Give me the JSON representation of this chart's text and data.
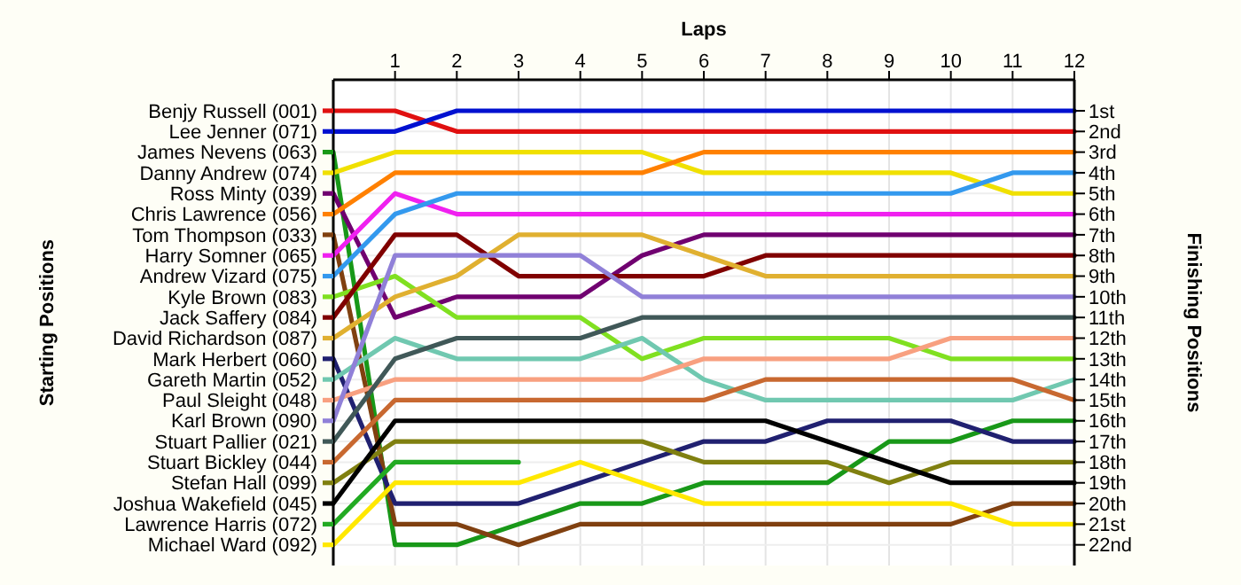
{
  "chart_data": {
    "type": "line",
    "xlabel": "Laps",
    "annotations": [
      "Starting Positions"
    ],
    "legend": "left",
    "ylabel": "Finishing Positions",
    "grid": true,
    "x": [
      0,
      1,
      2,
      3,
      4,
      5,
      6,
      7,
      8,
      9,
      10,
      11,
      12
    ],
    "xlim": [
      0,
      12
    ],
    "xticks": [
      1,
      2,
      3,
      4,
      5,
      6,
      7,
      8,
      9,
      10,
      11,
      12
    ],
    "ylim": [
      23,
      -0.5
    ],
    "yticks": [
      {
        "value": 1,
        "label": "1st"
      },
      {
        "value": 2,
        "label": "2nd"
      },
      {
        "value": 3,
        "label": "3rd"
      },
      {
        "value": 4,
        "label": "4th"
      },
      {
        "value": 5,
        "label": "5th"
      },
      {
        "value": 6,
        "label": "6th"
      },
      {
        "value": 7,
        "label": "7th"
      },
      {
        "value": 8,
        "label": "8th"
      },
      {
        "value": 9,
        "label": "9th"
      },
      {
        "value": 10,
        "label": "10th"
      },
      {
        "value": 11,
        "label": "11th"
      },
      {
        "value": 12,
        "label": "12th"
      },
      {
        "value": 13,
        "label": "13th"
      },
      {
        "value": 14,
        "label": "14th"
      },
      {
        "value": 15,
        "label": "15th"
      },
      {
        "value": 16,
        "label": "16th"
      },
      {
        "value": 17,
        "label": "17th"
      },
      {
        "value": 18,
        "label": "18th"
      },
      {
        "value": 19,
        "label": "19th"
      },
      {
        "value": 20,
        "label": "20th"
      },
      {
        "value": 21,
        "label": "21st"
      },
      {
        "value": 22,
        "label": "22nd"
      }
    ],
    "series": [
      {
        "name": "Benjy Russell (001)",
        "color": "#e01010",
        "values": [
          1,
          1,
          2,
          2,
          2,
          2,
          2,
          2,
          2,
          2,
          2,
          2,
          2
        ]
      },
      {
        "name": "Lee Jenner (071)",
        "color": "#0010d0",
        "values": [
          2,
          2,
          1,
          1,
          1,
          1,
          1,
          1,
          1,
          1,
          1,
          1,
          1
        ]
      },
      {
        "name": "James Nevens (063)",
        "color": "#189818",
        "values": [
          3,
          22,
          22,
          21,
          20,
          20,
          19,
          19,
          19,
          17,
          17,
          16,
          16
        ]
      },
      {
        "name": "Danny Andrew (074)",
        "color": "#f0e000",
        "values": [
          4,
          3,
          3,
          3,
          3,
          3,
          4,
          4,
          4,
          4,
          4,
          5,
          5
        ]
      },
      {
        "name": "Ross Minty (039)",
        "color": "#700070",
        "values": [
          5,
          11,
          10,
          10,
          10,
          8,
          7,
          7,
          7,
          7,
          7,
          7,
          7
        ]
      },
      {
        "name": "Chris Lawrence (056)",
        "color": "#ff8000",
        "values": [
          6,
          4,
          4,
          4,
          4,
          4,
          3,
          3,
          3,
          3,
          3,
          3,
          3
        ]
      },
      {
        "name": "Tom Thompson (033)",
        "color": "#804010",
        "values": [
          7,
          21,
          21,
          22,
          21,
          21,
          21,
          21,
          21,
          21,
          21,
          20,
          20
        ]
      },
      {
        "name": "Harry Somner (065)",
        "color": "#f020f0",
        "values": [
          8,
          5,
          6,
          6,
          6,
          6,
          6,
          6,
          6,
          6,
          6,
          6,
          6
        ]
      },
      {
        "name": "Andrew Vizard (075)",
        "color": "#3399ee",
        "values": [
          9,
          6,
          5,
          5,
          5,
          5,
          5,
          5,
          5,
          5,
          5,
          4,
          4
        ]
      },
      {
        "name": "Kyle Brown (083)",
        "color": "#80e020",
        "values": [
          10,
          9,
          11,
          11,
          11,
          13,
          12,
          12,
          12,
          12,
          13,
          13,
          13
        ]
      },
      {
        "name": "Jack Saffery (084)",
        "color": "#800000",
        "values": [
          11,
          7,
          7,
          9,
          9,
          9,
          9,
          8,
          8,
          8,
          8,
          8,
          8
        ]
      },
      {
        "name": "David Richardson (087)",
        "color": "#e0b030",
        "values": [
          12,
          10,
          9,
          7,
          7,
          7,
          8,
          9,
          9,
          9,
          9,
          9,
          9
        ]
      },
      {
        "name": "Mark Herbert (060)",
        "color": "#202070",
        "values": [
          13,
          20,
          20,
          20,
          19,
          18,
          17,
          17,
          16,
          16,
          16,
          17,
          17
        ]
      },
      {
        "name": "Gareth Martin (052)",
        "color": "#70c8b0",
        "values": [
          14,
          12,
          13,
          13,
          13,
          12,
          14,
          15,
          15,
          15,
          15,
          15,
          14
        ]
      },
      {
        "name": "Paul Sleight (048)",
        "color": "#f8a080",
        "values": [
          15,
          14,
          14,
          14,
          14,
          14,
          13,
          13,
          13,
          13,
          12,
          12,
          12
        ]
      },
      {
        "name": "Karl Brown (090)",
        "color": "#9080d8",
        "values": [
          16,
          8,
          8,
          8,
          8,
          10,
          10,
          10,
          10,
          10,
          10,
          10,
          10
        ]
      },
      {
        "name": "Stuart Pallier (021)",
        "color": "#405858",
        "values": [
          17,
          13,
          12,
          12,
          12,
          11,
          11,
          11,
          11,
          11,
          11,
          11,
          11
        ]
      },
      {
        "name": "Stuart Bickley (044)",
        "color": "#c86830",
        "values": [
          18,
          15,
          15,
          15,
          15,
          15,
          15,
          14,
          14,
          14,
          14,
          14,
          15
        ]
      },
      {
        "name": "Stefan Hall (099)",
        "color": "#808010",
        "values": [
          19,
          17,
          17,
          17,
          17,
          17,
          18,
          18,
          18,
          19,
          18,
          18,
          18
        ]
      },
      {
        "name": "Joshua Wakefield (045)",
        "color": "#000000",
        "values": [
          20,
          16,
          16,
          16,
          16,
          16,
          16,
          16,
          17,
          18,
          19,
          19,
          19
        ]
      },
      {
        "name": "Lawrence Harris (072)",
        "color": "#22aa22",
        "values": [
          21,
          18,
          18,
          18,
          null,
          null,
          null,
          null,
          null,
          null,
          null,
          null,
          null
        ]
      },
      {
        "name": "Michael Ward (092)",
        "color": "#ffe800",
        "values": [
          22,
          19,
          19,
          19,
          18,
          19,
          20,
          20,
          20,
          20,
          20,
          21,
          21
        ]
      }
    ]
  }
}
